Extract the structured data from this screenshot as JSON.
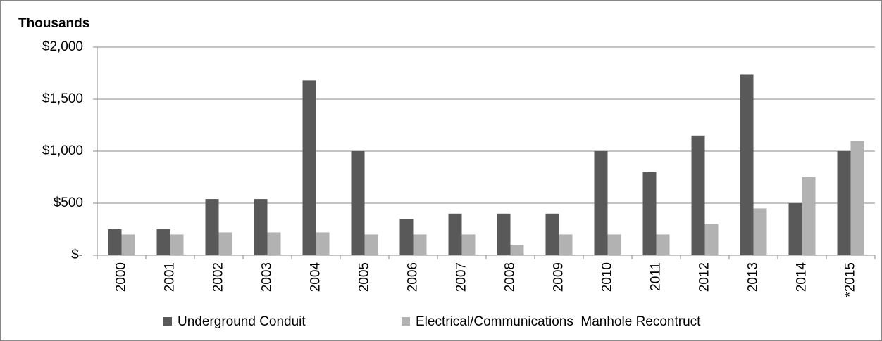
{
  "chart_data": {
    "type": "bar",
    "ylabel": "Thousands",
    "categories": [
      "2000",
      "2001",
      "2002",
      "2003",
      "2004",
      "2005",
      "2006",
      "2007",
      "2008",
      "2009",
      "2010",
      "2011",
      "2012",
      "2013",
      "2014",
      "*2015"
    ],
    "series": [
      {
        "name": "Underground Conduit",
        "color": "#595959",
        "values": [
          250,
          250,
          540,
          540,
          1680,
          1000,
          350,
          400,
          400,
          400,
          1000,
          800,
          1150,
          1740,
          500,
          1000
        ]
      },
      {
        "name": "Electrical/Communications  Manhole Recontruct",
        "color": "#b2b2b2",
        "values": [
          200,
          200,
          220,
          220,
          220,
          200,
          200,
          200,
          100,
          200,
          200,
          200,
          300,
          450,
          750,
          1100
        ]
      }
    ],
    "ylim": [
      0,
      2000
    ],
    "yticks": [
      {
        "value": 0,
        "label": "$-"
      },
      {
        "value": 500,
        "label": "$500"
      },
      {
        "value": 1000,
        "label": "$1,000"
      },
      {
        "value": 1500,
        "label": "$1,500"
      },
      {
        "value": 2000,
        "label": "$2,000"
      }
    ],
    "grid": true,
    "legend": "bottom"
  }
}
